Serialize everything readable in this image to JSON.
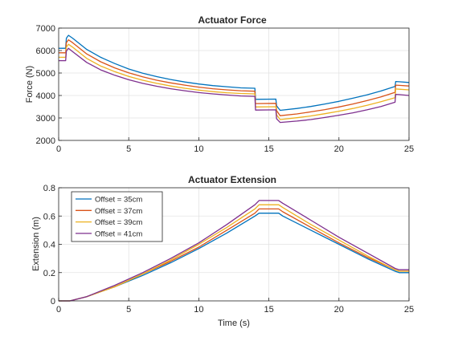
{
  "chart_data": [
    {
      "type": "line",
      "title": "Actuator Force",
      "xlabel": "",
      "ylabel": "Force (N)",
      "xlim": [
        0,
        25
      ],
      "ylim": [
        2000,
        7000
      ],
      "xticks": [
        0,
        5,
        10,
        15,
        20,
        25
      ],
      "yticks": [
        2000,
        3000,
        4000,
        5000,
        6000,
        7000
      ],
      "grid": true,
      "legend": "none",
      "series": [
        {
          "color": "#0072BD",
          "x": [
            0,
            0.5,
            0.55,
            0.7,
            1,
            2,
            3,
            4,
            5,
            6,
            7,
            8,
            9,
            10,
            11,
            12,
            13,
            14,
            14.05,
            15.5,
            15.55,
            15.8,
            17,
            18,
            19,
            20,
            21,
            22,
            23,
            24,
            24.05,
            24.3,
            25
          ],
          "y": [
            6100,
            6100,
            6550,
            6680,
            6550,
            6050,
            5700,
            5420,
            5180,
            4990,
            4840,
            4710,
            4600,
            4510,
            4440,
            4390,
            4340,
            4320,
            3830,
            3840,
            3540,
            3340,
            3420,
            3510,
            3620,
            3740,
            3880,
            4030,
            4200,
            4400,
            4620,
            4610,
            4580
          ]
        },
        {
          "color": "#D95319",
          "x": [
            0,
            0.5,
            0.55,
            0.7,
            1,
            2,
            3,
            4,
            5,
            6,
            7,
            8,
            9,
            10,
            11,
            12,
            13,
            14,
            14.05,
            15.5,
            15.55,
            15.8,
            17,
            18,
            19,
            20,
            21,
            22,
            23,
            24,
            24.05,
            24.3,
            25
          ],
          "y": [
            5900,
            5900,
            6350,
            6480,
            6350,
            5850,
            5500,
            5230,
            5010,
            4830,
            4680,
            4560,
            4460,
            4370,
            4300,
            4250,
            4210,
            4190,
            3640,
            3650,
            3330,
            3100,
            3180,
            3270,
            3370,
            3490,
            3620,
            3770,
            3940,
            4140,
            4460,
            4450,
            4420
          ]
        },
        {
          "color": "#EDB120",
          "x": [
            0,
            0.5,
            0.55,
            0.7,
            1,
            2,
            3,
            4,
            5,
            6,
            7,
            8,
            9,
            10,
            11,
            12,
            13,
            14,
            14.05,
            15.5,
            15.55,
            15.8,
            17,
            18,
            19,
            20,
            21,
            22,
            23,
            24,
            24.05,
            24.3,
            25
          ],
          "y": [
            5700,
            5700,
            6150,
            6280,
            6150,
            5650,
            5310,
            5060,
            4850,
            4680,
            4540,
            4420,
            4320,
            4240,
            4170,
            4120,
            4090,
            4070,
            3490,
            3500,
            3140,
            2930,
            3010,
            3090,
            3190,
            3300,
            3420,
            3560,
            3720,
            3900,
            4290,
            4280,
            4250
          ]
        },
        {
          "color": "#7E2F8E",
          "x": [
            0,
            0.5,
            0.55,
            0.7,
            1,
            2,
            3,
            4,
            5,
            6,
            7,
            8,
            9,
            10,
            11,
            12,
            13,
            14,
            14.05,
            15.5,
            15.55,
            15.8,
            17,
            18,
            19,
            20,
            21,
            22,
            23,
            24,
            24.05,
            24.3,
            25
          ],
          "y": [
            5550,
            5550,
            5980,
            6100,
            5950,
            5470,
            5140,
            4900,
            4700,
            4540,
            4410,
            4300,
            4210,
            4130,
            4070,
            4020,
            3980,
            3960,
            3350,
            3360,
            2960,
            2800,
            2860,
            2930,
            3020,
            3120,
            3230,
            3360,
            3510,
            3700,
            4050,
            4040,
            4000
          ]
        }
      ]
    },
    {
      "type": "line",
      "title": "Actuator Extension",
      "xlabel": "Time (s)",
      "ylabel": "Extension (m)",
      "xlim": [
        0,
        25
      ],
      "ylim": [
        0,
        0.8
      ],
      "xticks": [
        0,
        5,
        10,
        15,
        20,
        25
      ],
      "yticks": [
        0,
        0.2,
        0.4,
        0.6,
        0.8
      ],
      "grid": true,
      "legend": "top-left",
      "series": [
        {
          "name": "Offset = 35cm",
          "color": "#0072BD",
          "x": [
            0,
            0.8,
            2,
            4,
            6,
            8,
            10,
            12,
            14,
            14.3,
            15.7,
            16,
            18,
            20,
            22,
            24,
            24.3,
            25
          ],
          "y": [
            0,
            0,
            0.03,
            0.1,
            0.18,
            0.27,
            0.37,
            0.48,
            0.6,
            0.62,
            0.62,
            0.6,
            0.5,
            0.4,
            0.3,
            0.21,
            0.2,
            0.2
          ]
        },
        {
          "name": "Offset = 37cm",
          "color": "#D95319",
          "x": [
            0,
            0.8,
            2,
            4,
            6,
            8,
            10,
            12,
            14,
            14.3,
            15.7,
            16,
            18,
            20,
            22,
            24,
            24.3,
            25
          ],
          "y": [
            0,
            0,
            0.03,
            0.1,
            0.19,
            0.28,
            0.38,
            0.5,
            0.62,
            0.65,
            0.65,
            0.63,
            0.52,
            0.41,
            0.31,
            0.22,
            0.21,
            0.21
          ]
        },
        {
          "name": "Offset = 39cm",
          "color": "#EDB120",
          "x": [
            0,
            0.8,
            2,
            4,
            6,
            8,
            10,
            12,
            14,
            14.3,
            15.7,
            16,
            18,
            20,
            22,
            24,
            24.3,
            25
          ],
          "y": [
            0,
            0,
            0.03,
            0.1,
            0.19,
            0.29,
            0.4,
            0.52,
            0.65,
            0.68,
            0.68,
            0.66,
            0.54,
            0.43,
            0.32,
            0.22,
            0.21,
            0.21
          ]
        },
        {
          "name": "Offset = 41cm",
          "color": "#7E2F8E",
          "x": [
            0,
            0.8,
            2,
            4,
            6,
            8,
            10,
            12,
            14,
            14.3,
            15.7,
            16,
            18,
            20,
            22,
            24,
            24.3,
            25
          ],
          "y": [
            0,
            0,
            0.03,
            0.11,
            0.2,
            0.3,
            0.41,
            0.54,
            0.68,
            0.71,
            0.71,
            0.69,
            0.57,
            0.45,
            0.34,
            0.23,
            0.22,
            0.22
          ]
        }
      ]
    }
  ]
}
